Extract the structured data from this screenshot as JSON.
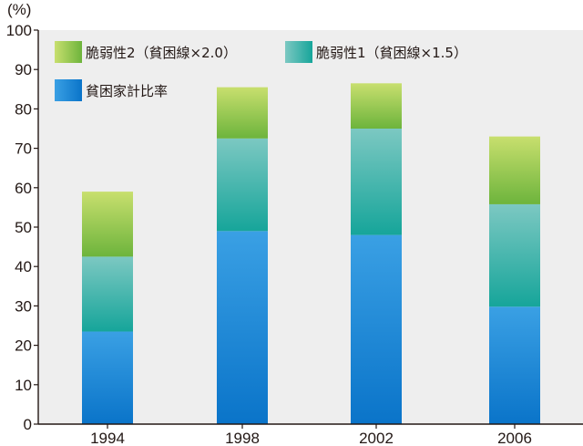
{
  "colors": {
    "plot_background": "#eeeeee",
    "axis": "#231815"
  },
  "chart_data": {
    "type": "bar",
    "stacked": true,
    "title": "",
    "ylabel": "(%)",
    "xlabel": "",
    "ylim": [
      0,
      100
    ],
    "yticks": [
      0,
      10,
      20,
      30,
      40,
      50,
      60,
      70,
      80,
      90,
      100
    ],
    "grid": false,
    "legend_position": "top-left",
    "categories": [
      "1994",
      "1998",
      "2002",
      "2006"
    ],
    "series": [
      {
        "name": "貧困家計比率",
        "values": [
          23.5,
          49.0,
          48.0,
          29.8
        ],
        "color_top": "#3aa0e4",
        "color_bottom": "#0a74c9"
      },
      {
        "name": "脆弱性1（貧困線×1.5）",
        "values": [
          19.0,
          23.5,
          27.0,
          26.0
        ],
        "color_top": "#7cc8c2",
        "color_bottom": "#16a59a"
      },
      {
        "name": "脆弱性2（貧困線×2.0）",
        "values": [
          16.5,
          13.0,
          11.5,
          17.2
        ],
        "color_top": "#c8df6e",
        "color_bottom": "#6db43c"
      }
    ],
    "legend_order": [
      2,
      1,
      0
    ]
  }
}
